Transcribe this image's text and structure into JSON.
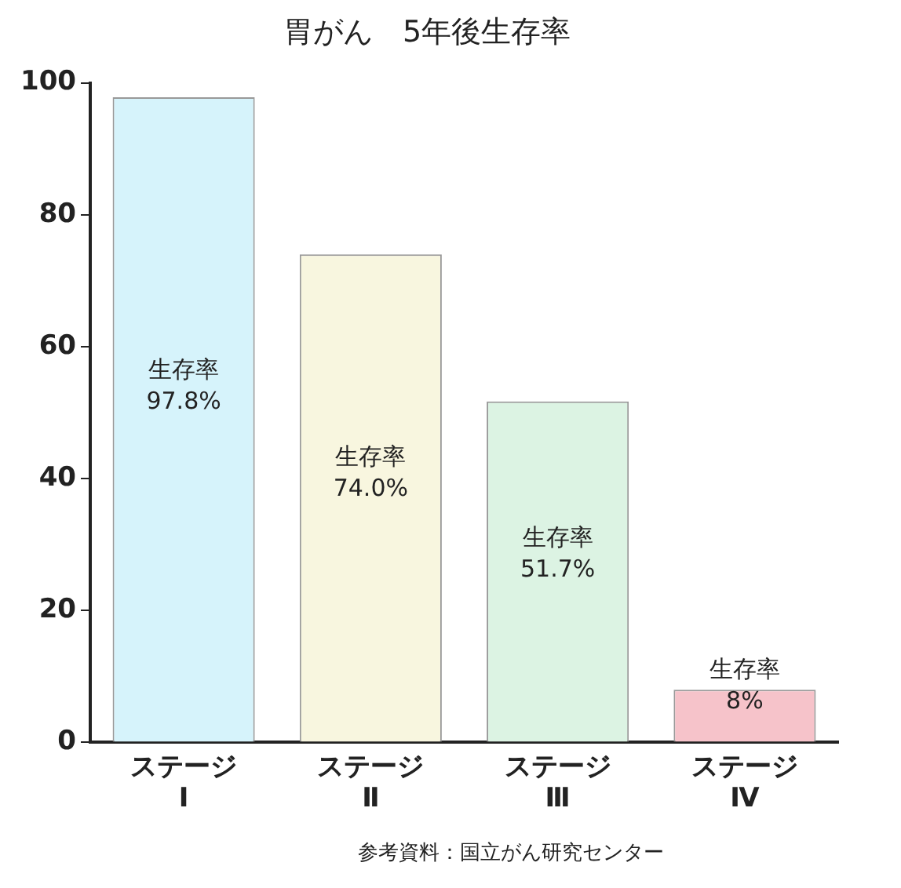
{
  "chart_data": {
    "type": "bar",
    "title": "胃がん　5年後生存率",
    "categories": [
      "ステージ\nⅠ",
      "ステージ\nⅡ",
      "ステージ\nⅢ",
      "ステージ\nⅣ"
    ],
    "values": [
      97.8,
      74.0,
      51.7,
      8
    ],
    "colors": [
      "#d6f3fb",
      "#f8f6df",
      "#dcf3e3",
      "#f6c3ca"
    ],
    "value_labels": [
      "生存率\n97.8%",
      "生存率\n74.0%",
      "生存率\n51.7%",
      "生存率\n8%"
    ],
    "ylim": [
      0,
      100
    ],
    "yticks": [
      0,
      20,
      40,
      60,
      80,
      100
    ],
    "grid": false,
    "legend": false,
    "annotations": [
      "参考資料：国立がん研究センター"
    ]
  }
}
